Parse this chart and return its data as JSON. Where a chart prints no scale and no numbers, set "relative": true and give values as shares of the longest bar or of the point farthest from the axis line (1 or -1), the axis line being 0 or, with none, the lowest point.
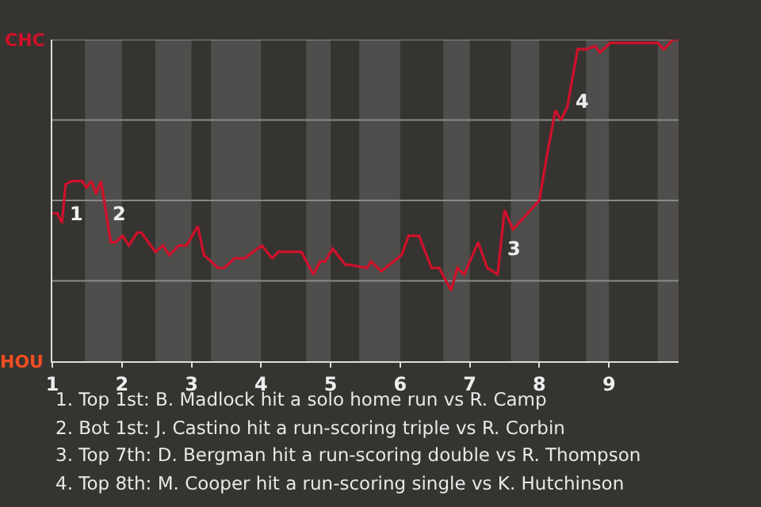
{
  "chart_data": {
    "type": "line",
    "relative": true,
    "x": [
      1.0,
      1.07,
      1.14,
      1.19,
      1.28,
      1.43,
      1.49,
      1.56,
      1.63,
      1.7,
      1.84,
      1.91,
      2.01,
      2.1,
      2.22,
      2.28,
      2.48,
      2.59,
      2.68,
      2.82,
      2.93,
      3.09,
      3.18,
      3.38,
      3.47,
      3.62,
      3.76,
      4.01,
      4.16,
      4.25,
      4.58,
      4.75,
      4.85,
      4.92,
      5.03,
      5.21,
      5.27,
      5.52,
      5.58,
      5.73,
      6.02,
      6.12,
      6.27,
      6.45,
      6.56,
      6.73,
      6.82,
      6.92,
      7.12,
      7.25,
      7.4,
      7.5,
      7.62,
      8.0,
      8.1,
      8.23,
      8.31,
      8.4,
      8.55,
      8.67,
      8.8,
      8.87,
      9.02,
      9.14,
      9.7,
      9.79,
      9.92,
      10.0
    ],
    "series": [
      {
        "color": "#d0102a",
        "line_style": "solid",
        "values": [
          0.46,
          0.46,
          0.43,
          0.55,
          0.56,
          0.56,
          0.54,
          0.56,
          0.52,
          0.56,
          0.37,
          0.37,
          0.39,
          0.36,
          0.4,
          0.4,
          0.34,
          0.36,
          0.33,
          0.36,
          0.36,
          0.42,
          0.33,
          0.29,
          0.29,
          0.32,
          0.32,
          0.36,
          0.32,
          0.34,
          0.34,
          0.27,
          0.31,
          0.31,
          0.35,
          0.3,
          0.3,
          0.29,
          0.31,
          0.28,
          0.33,
          0.39,
          0.39,
          0.29,
          0.29,
          0.22,
          0.29,
          0.27,
          0.37,
          0.29,
          0.27,
          0.47,
          0.41,
          0.5,
          0.63,
          0.78,
          0.75,
          0.79,
          0.97,
          0.97,
          0.98,
          0.96,
          0.99,
          0.99,
          0.99,
          0.97,
          1.0,
          1.0
        ]
      }
    ],
    "xlim": [
      1,
      10
    ],
    "xticks": [
      1,
      2,
      3,
      4,
      5,
      6,
      7,
      8,
      9
    ],
    "grid": false,
    "ref_lines": [
      {
        "axis": "y",
        "value": 0.25,
        "color": "#8a8a88"
      },
      {
        "axis": "y",
        "value": 0.5,
        "color": "#8a8a88"
      },
      {
        "axis": "y",
        "value": 0.75,
        "color": "#8a8a88"
      },
      {
        "axis": "y",
        "value": 1,
        "color": "#8a8a88"
      }
    ],
    "bands": [
      {
        "axis": "x",
        "from": 1.47,
        "to": 2,
        "color": "#4f4e4c"
      },
      {
        "axis": "x",
        "from": 2.48,
        "to": 3,
        "color": "#4f4e4c"
      },
      {
        "axis": "x",
        "from": 3.28,
        "to": 4,
        "color": "#4f4e4c"
      },
      {
        "axis": "x",
        "from": 4.65,
        "to": 5,
        "color": "#4f4e4c"
      },
      {
        "axis": "x",
        "from": 5.41,
        "to": 6,
        "color": "#4f4e4c"
      },
      {
        "axis": "x",
        "from": 6.62,
        "to": 7,
        "color": "#4f4e4c"
      },
      {
        "axis": "x",
        "from": 7.59,
        "to": 8,
        "color": "#4f4e4c"
      },
      {
        "axis": "x",
        "from": 8.67,
        "to": 9,
        "color": "#4f4e4c"
      },
      {
        "axis": "x",
        "from": 9.7,
        "to": 10,
        "color": "#4f4e4c"
      }
    ],
    "annotations": [
      "CHC",
      "HOU",
      {
        "text": "1",
        "x": 1.153,
        "y": 0.46
      },
      {
        "text": "2",
        "x": 1.77,
        "y": 0.46
      },
      {
        "text": "3",
        "x": 7.44,
        "y": 0.35
      },
      {
        "text": "4",
        "x": 8.42,
        "y": 0.81
      },
      "1. Top 1st: B. Madlock hit a solo home run vs R. Camp",
      "2. Bot 1st: J. Castino hit a run-scoring triple vs R. Corbin",
      "3. Top 7th: D. Bergman hit a run-scoring double vs R. Thompson",
      "4. Top 8th: M. Cooper hit a run-scoring single vs K. Hutchinson"
    ]
  }
}
